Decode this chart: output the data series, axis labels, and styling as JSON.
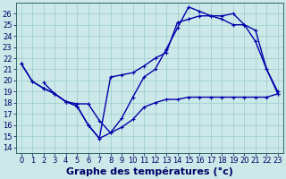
{
  "series1_x": [
    0,
    1,
    2,
    3,
    4,
    5,
    6,
    7,
    8,
    9,
    10,
    11,
    12,
    13,
    14,
    15,
    16,
    17,
    18,
    19,
    20,
    21,
    22,
    23
  ],
  "series1_y": [
    21.5,
    19.9,
    19.3,
    18.8,
    18.1,
    17.7,
    16.0,
    14.8,
    15.3,
    16.6,
    18.5,
    20.3,
    21.0,
    22.8,
    24.7,
    26.6,
    26.2,
    25.8,
    25.8,
    26.0,
    25.0,
    23.5,
    21.0,
    19.0
  ],
  "series2_x": [
    0,
    1,
    2,
    3,
    4,
    5,
    6,
    7,
    8,
    9,
    10,
    11,
    12,
    13,
    14,
    15,
    16,
    17,
    18,
    19,
    20,
    21,
    22,
    23
  ],
  "series2_y": [
    21.5,
    19.9,
    19.3,
    18.8,
    18.1,
    17.7,
    16.0,
    14.8,
    20.3,
    20.5,
    20.7,
    21.3,
    22.0,
    22.5,
    25.2,
    25.5,
    25.8,
    25.8,
    25.5,
    25.0,
    25.0,
    24.5,
    21.0,
    18.8
  ],
  "series3_x": [
    2,
    3,
    4,
    5,
    6,
    7,
    8,
    9,
    10,
    11,
    12,
    13,
    14,
    15,
    16,
    17,
    18,
    19,
    20,
    21,
    22,
    23
  ],
  "series3_y": [
    19.8,
    18.8,
    18.1,
    17.9,
    17.9,
    16.4,
    15.3,
    15.8,
    16.5,
    17.6,
    18.0,
    18.3,
    18.3,
    18.5,
    18.5,
    18.5,
    18.5,
    18.5,
    18.5,
    18.5,
    18.5,
    18.8
  ],
  "xlabel": "Graphe des températures (°c)",
  "yticks": [
    14,
    15,
    16,
    17,
    18,
    19,
    20,
    21,
    22,
    23,
    24,
    25,
    26
  ],
  "xtick_labels": [
    "0",
    "1",
    "2",
    "3",
    "4",
    "5",
    "6",
    "7",
    "8",
    "9",
    "10",
    "11",
    "12",
    "13",
    "14",
    "15",
    "16",
    "17",
    "18",
    "19",
    "20",
    "21",
    "22",
    "23"
  ],
  "xlim": [
    -0.5,
    23.5
  ],
  "ylim": [
    13.5,
    27.0
  ],
  "bg_color": "#cce8e8",
  "grid_color": "#99cccc",
  "line_color": "#0000aa",
  "linewidth": 1.0,
  "markersize": 3,
  "xlabel_fontsize": 8,
  "tick_fontsize": 6
}
